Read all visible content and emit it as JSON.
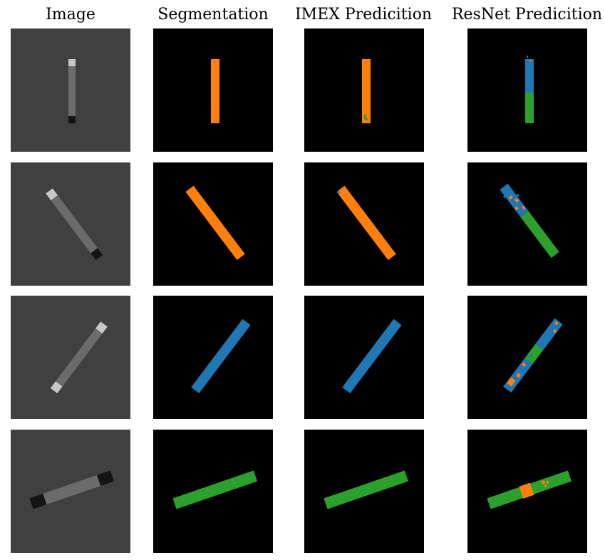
{
  "figure": {
    "columns": [
      "Image",
      "Segmentation",
      "IMEX Predicition",
      "ResNet Predicition"
    ],
    "colors": {
      "image_background": "#404040",
      "mask_background": "#000000",
      "class_orange": "#ff7f0e",
      "class_blue": "#1f77b4",
      "class_green": "#2ca02c",
      "rod_gray": "#6b6b6b",
      "cap_light": "#c8c8c8",
      "cap_dark": "#141414"
    }
  }
}
